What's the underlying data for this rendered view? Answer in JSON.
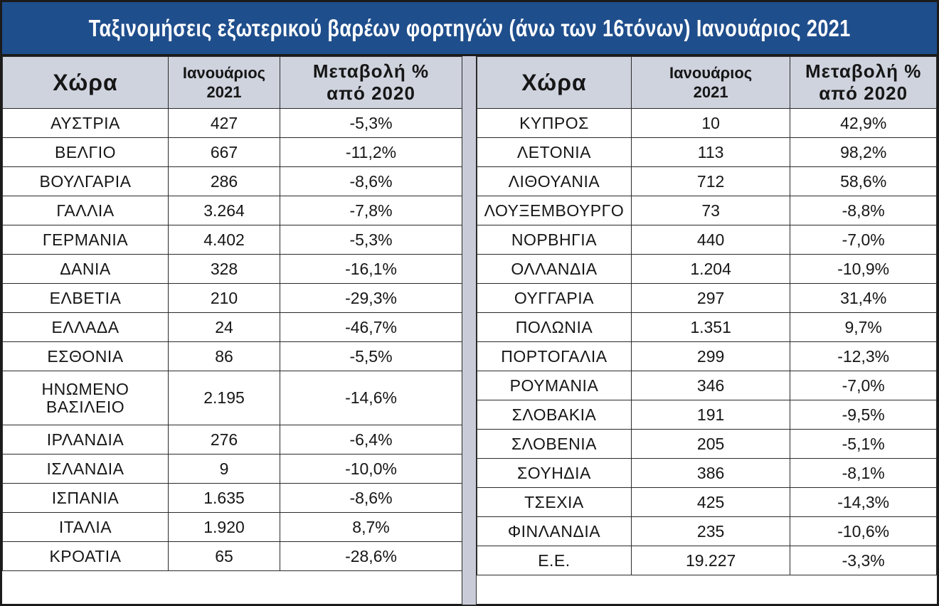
{
  "title": "Ταξινομήσεις εξωτερικού βαρέων φορτηγών (άνω των 16τόνων) Ιανουάριος 2021",
  "colors": {
    "title_bg": "#1f4e8c",
    "header_bg": "#cfd3de",
    "divider": "#c9ccd8"
  },
  "headers": {
    "country": "Χώρα",
    "january_line1": "Ιανουάριος",
    "january_line2": "2021",
    "change_line1": "Μεταβολή %",
    "change_line2": "από 2020"
  },
  "left_rows": [
    {
      "country": "ΑΥΣΤΡΙΑ",
      "value": "427",
      "change": "-5,3%"
    },
    {
      "country": "ΒΕΛΓΙΟ",
      "value": "667",
      "change": "-11,2%"
    },
    {
      "country": "ΒΟΥΛΓΑΡΙΑ",
      "value": "286",
      "change": "-8,6%"
    },
    {
      "country": "ΓΑΛΛΙΑ",
      "value": "3.264",
      "change": "-7,8%"
    },
    {
      "country": "ΓΕΡΜΑΝΙΑ",
      "value": "4.402",
      "change": "-5,3%"
    },
    {
      "country": "ΔΑΝΙΑ",
      "value": "328",
      "change": "-16,1%"
    },
    {
      "country": "ΕΛΒΕΤΙΑ",
      "value": "210",
      "change": "-29,3%"
    },
    {
      "country": "ΕΛΛΑΔΑ",
      "value": "24",
      "change": "-46,7%"
    },
    {
      "country": "ΕΣΘΟΝΙΑ",
      "value": "86",
      "change": "-5,5%"
    },
    {
      "country": "ΗΝΩΜΕΝΟ",
      "country_line2": "ΒΑΣΙΛΕΙΟ",
      "value": "2.195",
      "change": "-14,6%"
    },
    {
      "country": "ΙΡΛΑΝΔΙΑ",
      "value": "276",
      "change": "-6,4%"
    },
    {
      "country": "ΙΣΛΑΝΔΙΑ",
      "value": "9",
      "change": "-10,0%"
    },
    {
      "country": "ΙΣΠΑΝΙΑ",
      "value": "1.635",
      "change": "-8,6%"
    },
    {
      "country": "ΙΤΑΛΙΑ",
      "value": "1.920",
      "change": "8,7%"
    },
    {
      "country": "ΚΡΟΑΤΙΑ",
      "value": "65",
      "change": "-28,6%"
    }
  ],
  "right_rows": [
    {
      "country": "ΚΥΠΡΟΣ",
      "value": "10",
      "change": "42,9%"
    },
    {
      "country": "ΛΕΤΟΝΙΑ",
      "value": "113",
      "change": "98,2%"
    },
    {
      "country": "ΛΙΘΟΥΑΝΙΑ",
      "value": "712",
      "change": "58,6%"
    },
    {
      "country": "ΛΟΥΞΕΜΒΟΥΡΓΟ",
      "value": "73",
      "change": "-8,8%"
    },
    {
      "country": "ΝΟΡΒΗΓΙΑ",
      "value": "440",
      "change": "-7,0%"
    },
    {
      "country": "ΟΛΛΑΝΔΙΑ",
      "value": "1.204",
      "change": "-10,9%"
    },
    {
      "country": "ΟΥΓΓΑΡΙΑ",
      "value": "297",
      "change": "31,4%"
    },
    {
      "country": "ΠΟΛΩΝΙΑ",
      "value": "1.351",
      "change": "9,7%"
    },
    {
      "country": "ΠΟΡΤΟΓΑΛΙΑ",
      "value": "299",
      "change": "-12,3%"
    },
    {
      "country": "ΡΟΥΜΑΝΙΑ",
      "value": "346",
      "change": "-7,0%"
    },
    {
      "country": "ΣΛΟΒΑΚΙΑ",
      "value": "191",
      "change": "-9,5%"
    },
    {
      "country": "ΣΛΟΒΕΝΙΑ",
      "value": "205",
      "change": "-5,1%"
    },
    {
      "country": "ΣΟΥΗΔΙΑ",
      "value": "386",
      "change": "-8,1%"
    },
    {
      "country": "ΤΣΕΧΙΑ",
      "value": "425",
      "change": "-14,3%"
    },
    {
      "country": "ΦΙΝΛΑΝΔΙΑ",
      "value": "235",
      "change": "-10,6%"
    },
    {
      "country": "Ε.Ε.",
      "value": "19.227",
      "change": "-3,3%"
    }
  ]
}
